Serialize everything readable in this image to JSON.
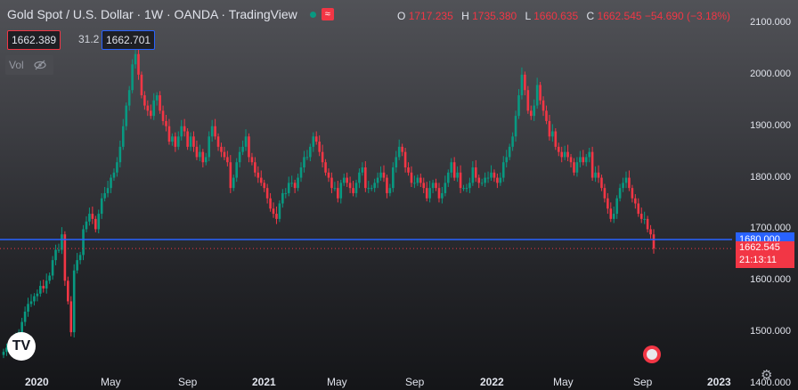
{
  "header": {
    "title": "Gold Spot / U.S. Dollar · 1W · OANDA · TradingView",
    "ohlc": {
      "o_label": "O",
      "o_value": "1717.235",
      "h_label": "H",
      "h_value": "1735.380",
      "l_label": "L",
      "l_value": "1660.635",
      "c_label": "C",
      "c_value": "1662.545",
      "change": "−54.690 (−3.18%)"
    }
  },
  "quote": {
    "bid": "1662.389",
    "spread": "31.2",
    "ask": "1662.701"
  },
  "volume_label": "Vol",
  "tags": {
    "line_price": "1680.000",
    "last_price": "1662.545",
    "countdown": "21:13:11"
  },
  "colors": {
    "up": "#089981",
    "down": "#f23645",
    "line": "#2962ff"
  },
  "icons": [
    "tradingview-logo-icon",
    "eye-off-icon",
    "us-flag-icon",
    "gear-icon"
  ],
  "chart_data": {
    "type": "candlestick",
    "y_ticks": [
      "2100.000",
      "2000.000",
      "1900.000",
      "1800.000",
      "1700.000",
      "1600.000",
      "1500.000",
      "1400.000"
    ],
    "ylim": [
      1380,
      2115
    ],
    "x_ticks": [
      "2020",
      "May",
      "Sep",
      "2021",
      "May",
      "Sep",
      "2022",
      "May",
      "Sep",
      "2023"
    ],
    "horizontal_line": 1680,
    "last_close": 1662.545,
    "closes": [
      1462,
      1470,
      1472,
      1480,
      1485,
      1500,
      1520,
      1540,
      1555,
      1560,
      1570,
      1575,
      1590,
      1585,
      1600,
      1610,
      1640,
      1660,
      1660,
      1690,
      1600,
      1560,
      1500,
      1620,
      1640,
      1650,
      1700,
      1715,
      1730,
      1720,
      1700,
      1730,
      1760,
      1770,
      1780,
      1800,
      1810,
      1830,
      1860,
      1900,
      1940,
      1970,
      2020,
      2040,
      2000,
      1960,
      1940,
      1930,
      1920,
      1950,
      1960,
      1930,
      1910,
      1900,
      1870,
      1880,
      1860,
      1880,
      1900,
      1890,
      1860,
      1880,
      1860,
      1840,
      1850,
      1830,
      1840,
      1880,
      1900,
      1880,
      1860,
      1850,
      1840,
      1830,
      1780,
      1800,
      1830,
      1850,
      1860,
      1880,
      1840,
      1830,
      1810,
      1800,
      1790,
      1780,
      1760,
      1740,
      1730,
      1720,
      1750,
      1770,
      1770,
      1790,
      1790,
      1780,
      1800,
      1820,
      1840,
      1840,
      1860,
      1880,
      1870,
      1850,
      1830,
      1810,
      1800,
      1780,
      1780,
      1760,
      1790,
      1800,
      1790,
      1780,
      1770,
      1790,
      1810,
      1820,
      1780,
      1780,
      1780,
      1790,
      1800,
      1810,
      1800,
      1770,
      1780,
      1820,
      1840,
      1860,
      1850,
      1820,
      1810,
      1790,
      1790,
      1800,
      1790,
      1780,
      1760,
      1780,
      1790,
      1780,
      1760,
      1770,
      1790,
      1810,
      1830,
      1800,
      1810,
      1780,
      1780,
      1780,
      1790,
      1820,
      1800,
      1790,
      1790,
      1800,
      1800,
      1810,
      1800,
      1790,
      1800,
      1830,
      1840,
      1860,
      1880,
      1920,
      1960,
      2000,
      1970,
      1930,
      1920,
      1940,
      1980,
      1950,
      1930,
      1910,
      1880,
      1890,
      1860,
      1850,
      1840,
      1850,
      1840,
      1830,
      1810,
      1830,
      1840,
      1830,
      1840,
      1850,
      1800,
      1810,
      1800,
      1780,
      1760,
      1740,
      1720,
      1730,
      1760,
      1780,
      1790,
      1800,
      1780,
      1760,
      1750,
      1730,
      1720,
      1720,
      1700,
      1690,
      1662.545
    ]
  }
}
